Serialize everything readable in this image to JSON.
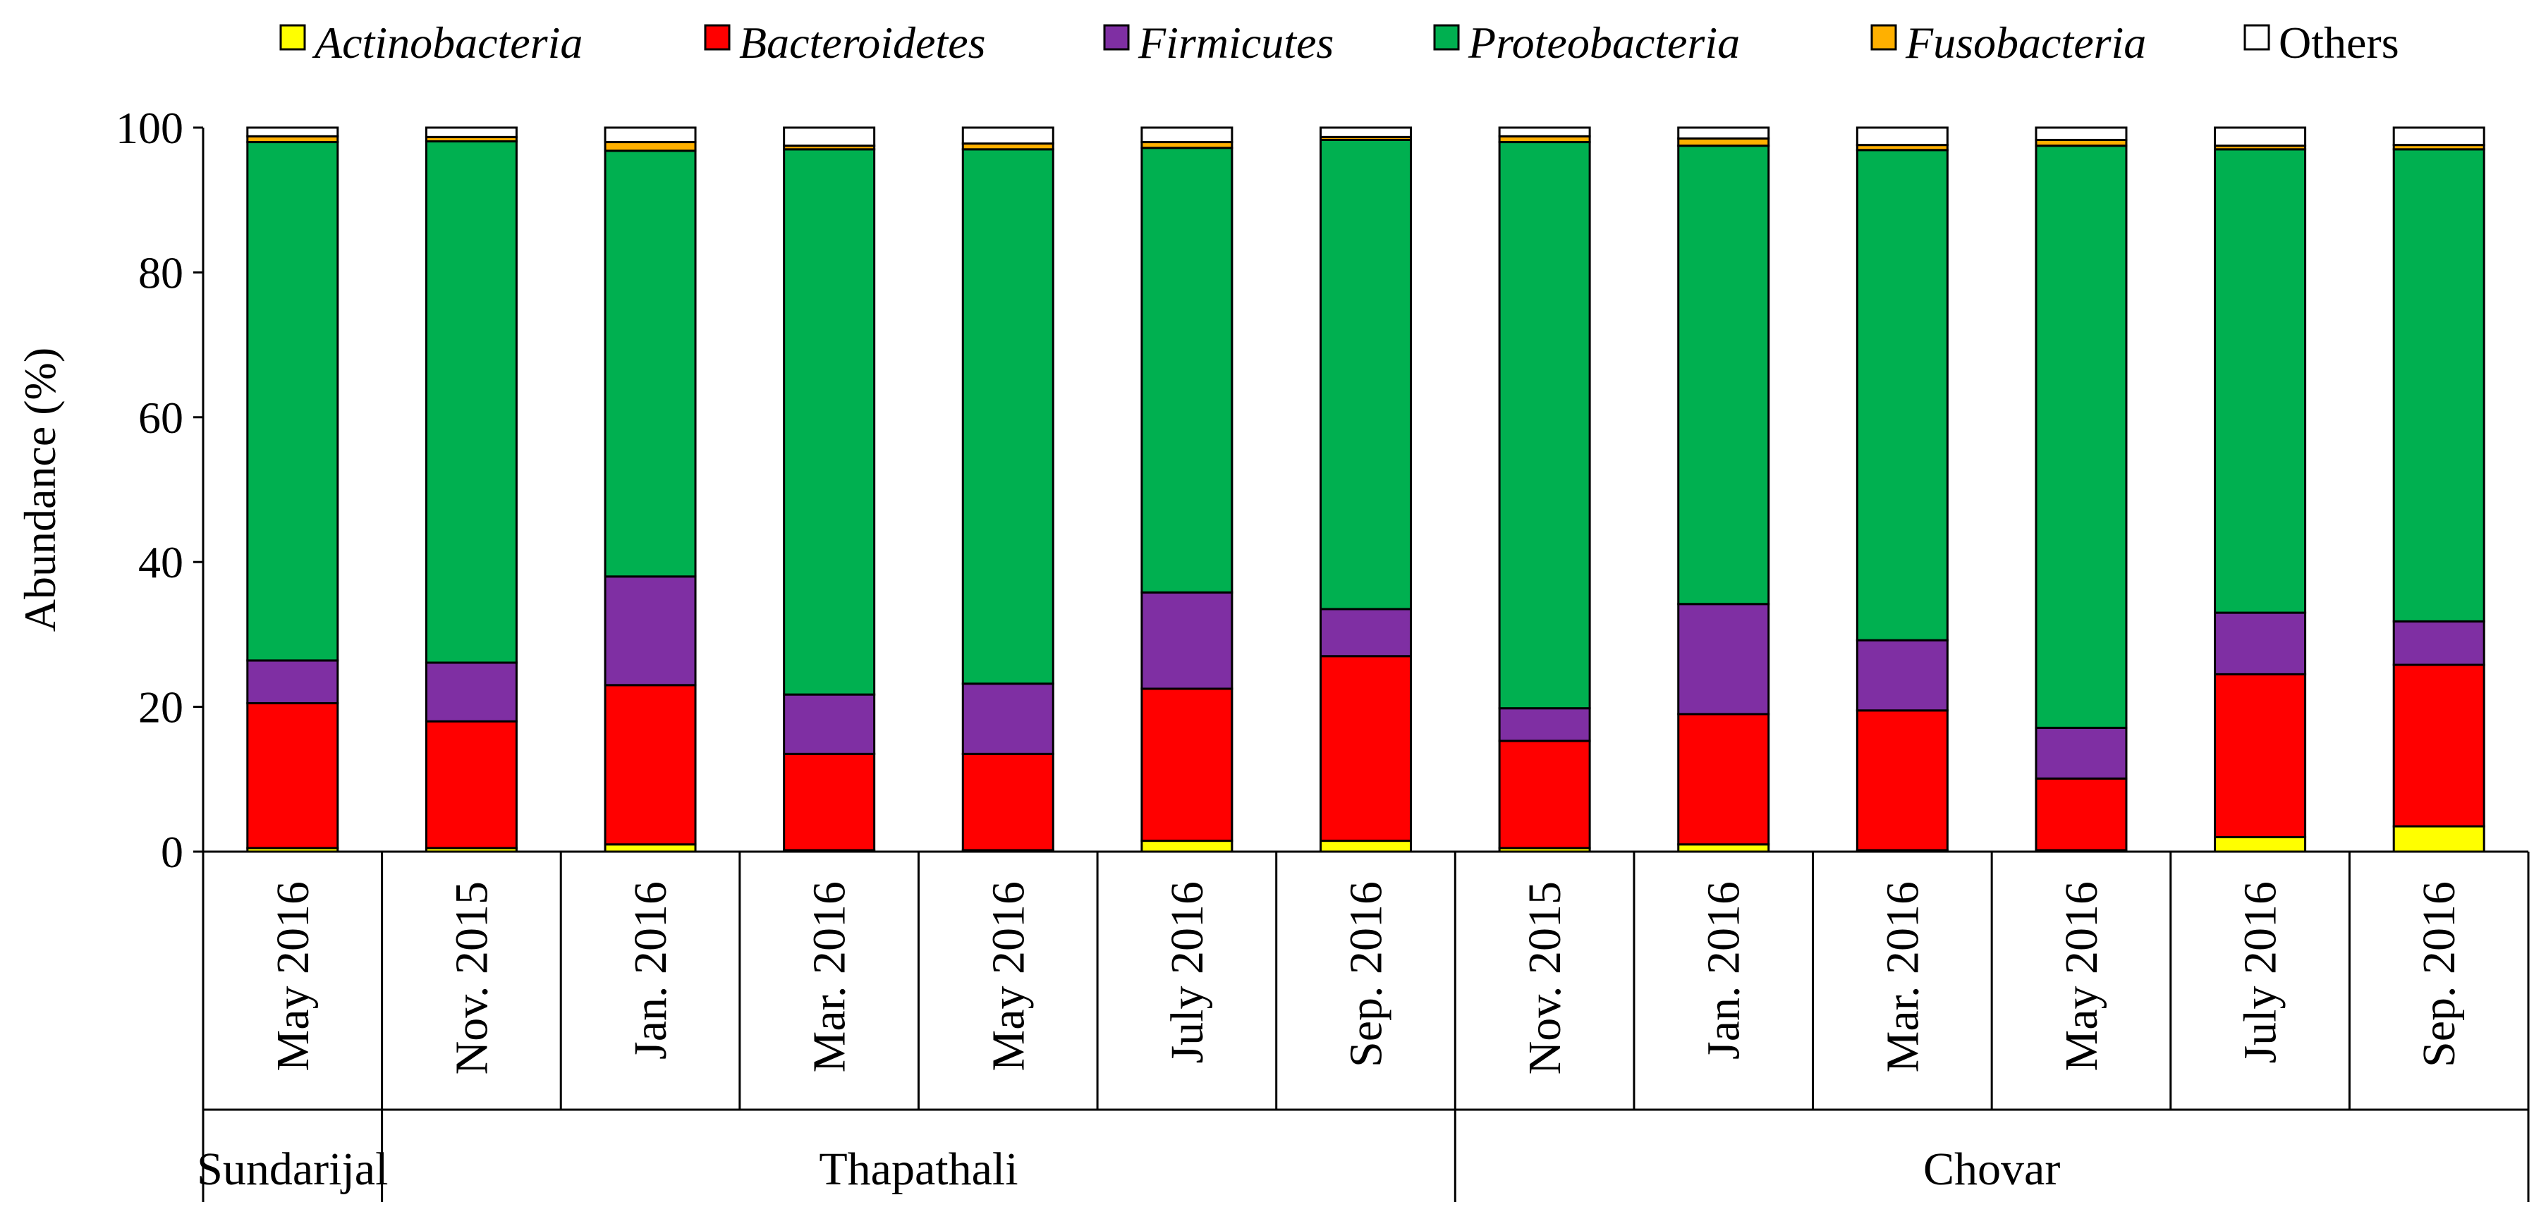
{
  "chart_data": {
    "type": "bar",
    "stacked": true,
    "ylabel": "Abundance (%)",
    "ylim": [
      0,
      100
    ],
    "yticks": [
      "0",
      "20",
      "40",
      "60",
      "80",
      "100"
    ],
    "legend_position": "top",
    "grid": false,
    "categories": [
      "May 2016",
      "Nov. 2015",
      "Jan. 2016",
      "Mar. 2016",
      "May 2016",
      "July 2016",
      "Sep. 2016",
      "Nov. 2015",
      "Jan. 2016",
      "Mar. 2016",
      "May 2016",
      "July 2016",
      "Sep. 2016"
    ],
    "groups": [
      {
        "name": "Sundarijal",
        "start": 0,
        "end": 0
      },
      {
        "name": "Thapathali",
        "start": 1,
        "end": 6
      },
      {
        "name": "Chovar",
        "start": 7,
        "end": 12
      }
    ],
    "series": [
      {
        "name": "Actinobacteria",
        "italic": true,
        "color": "#FFFF00",
        "values": [
          0.5,
          0.5,
          1.0,
          0.2,
          0.2,
          1.5,
          1.5,
          0.5,
          1.0,
          0.2,
          0.2,
          2.0,
          3.5
        ]
      },
      {
        "name": "Bacteroidetes",
        "italic": true,
        "color": "#FF0000",
        "values": [
          20.0,
          17.5,
          22.0,
          13.3,
          13.3,
          21.0,
          25.5,
          14.8,
          18.0,
          19.3,
          9.9,
          22.5,
          22.3
        ]
      },
      {
        "name": "Firmicutes",
        "italic": true,
        "color": "#7F2FA3",
        "values": [
          5.9,
          8.1,
          15.0,
          8.2,
          9.7,
          13.3,
          6.5,
          4.5,
          15.2,
          9.7,
          7.0,
          8.5,
          6.0
        ]
      },
      {
        "name": "Proteobacteria",
        "italic": true,
        "color": "#00B050",
        "values": [
          71.6,
          72.0,
          58.8,
          75.3,
          73.8,
          61.4,
          64.8,
          78.2,
          63.3,
          67.7,
          80.4,
          64.0,
          65.2
        ]
      },
      {
        "name": "Fusobacteria",
        "italic": true,
        "color": "#FFB000",
        "values": [
          0.8,
          0.6,
          1.2,
          0.5,
          0.8,
          0.8,
          0.4,
          0.8,
          1.0,
          0.7,
          0.8,
          0.5,
          0.6
        ]
      },
      {
        "name": "Others",
        "italic": false,
        "color": "#FFFFFF",
        "values": [
          1.2,
          1.3,
          2.0,
          2.5,
          2.2,
          2.0,
          1.3,
          1.2,
          1.5,
          2.4,
          1.7,
          2.5,
          2.4
        ]
      }
    ]
  }
}
